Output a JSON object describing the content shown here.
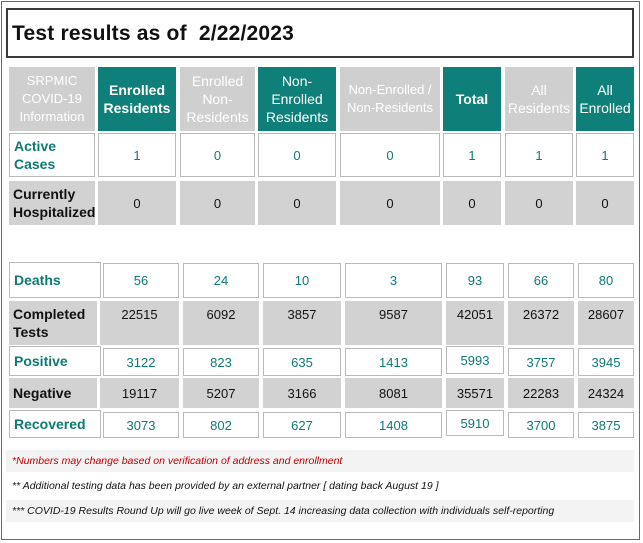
{
  "title": "Test results as of  2/22/2023",
  "headers": {
    "info": "SRPMIC COVID-19 Information",
    "enrolled_residents": "Enrolled Residents",
    "enrolled_non_residents": "Enrolled Non-Residents",
    "non_enrolled_residents": "Non-Enrolled Residents",
    "non_enrolled_non_residents": "Non-Enrolled / Non-Residents",
    "total": "Total",
    "all_residents": "All Residents",
    "all_enrolled": "All Enrolled"
  },
  "rows": {
    "active": {
      "label": "Active Cases",
      "values": [
        "1",
        "0",
        "0",
        "0",
        "1",
        "1",
        "1"
      ]
    },
    "hospitalized": {
      "label": "Currently Hospitalized",
      "values": [
        "0",
        "0",
        "0",
        "0",
        "0",
        "0",
        "0"
      ]
    },
    "deaths": {
      "label": "Deaths",
      "values": [
        "56",
        "24",
        "10",
        "3",
        "93",
        "66",
        "80"
      ]
    },
    "completed": {
      "label": "Completed Tests",
      "values": [
        "22515",
        "6092",
        "3857",
        "9587",
        "42051",
        "26372",
        "28607"
      ]
    },
    "positive": {
      "label": "Positive",
      "values": [
        "3122",
        "823",
        "635",
        "1413",
        "5993",
        "3757",
        "3945"
      ]
    },
    "negative": {
      "label": "Negative",
      "values": [
        "19117",
        "5207",
        "3166",
        "8081",
        "35571",
        "22283",
        "24324"
      ]
    },
    "recovered": {
      "label": "Recovered",
      "values": [
        "3073",
        "802",
        "627",
        "1408",
        "5910",
        "3700",
        "3875"
      ]
    }
  },
  "notes": {
    "n1": "*Numbers may change based on verification of address and enrollment",
    "n2": "** Additional testing data has been provided by an external partner [ dating back August 19 ]",
    "n3": "*** COVID-19 Results Round Up will go live week of Sept. 14 increasing data collection with individuals self-reporting"
  },
  "colors": {
    "teal": "#0e8079",
    "header_gray": "#cfcfcf",
    "row_gray": "#d2d2d2",
    "note_red": "#c00000"
  }
}
